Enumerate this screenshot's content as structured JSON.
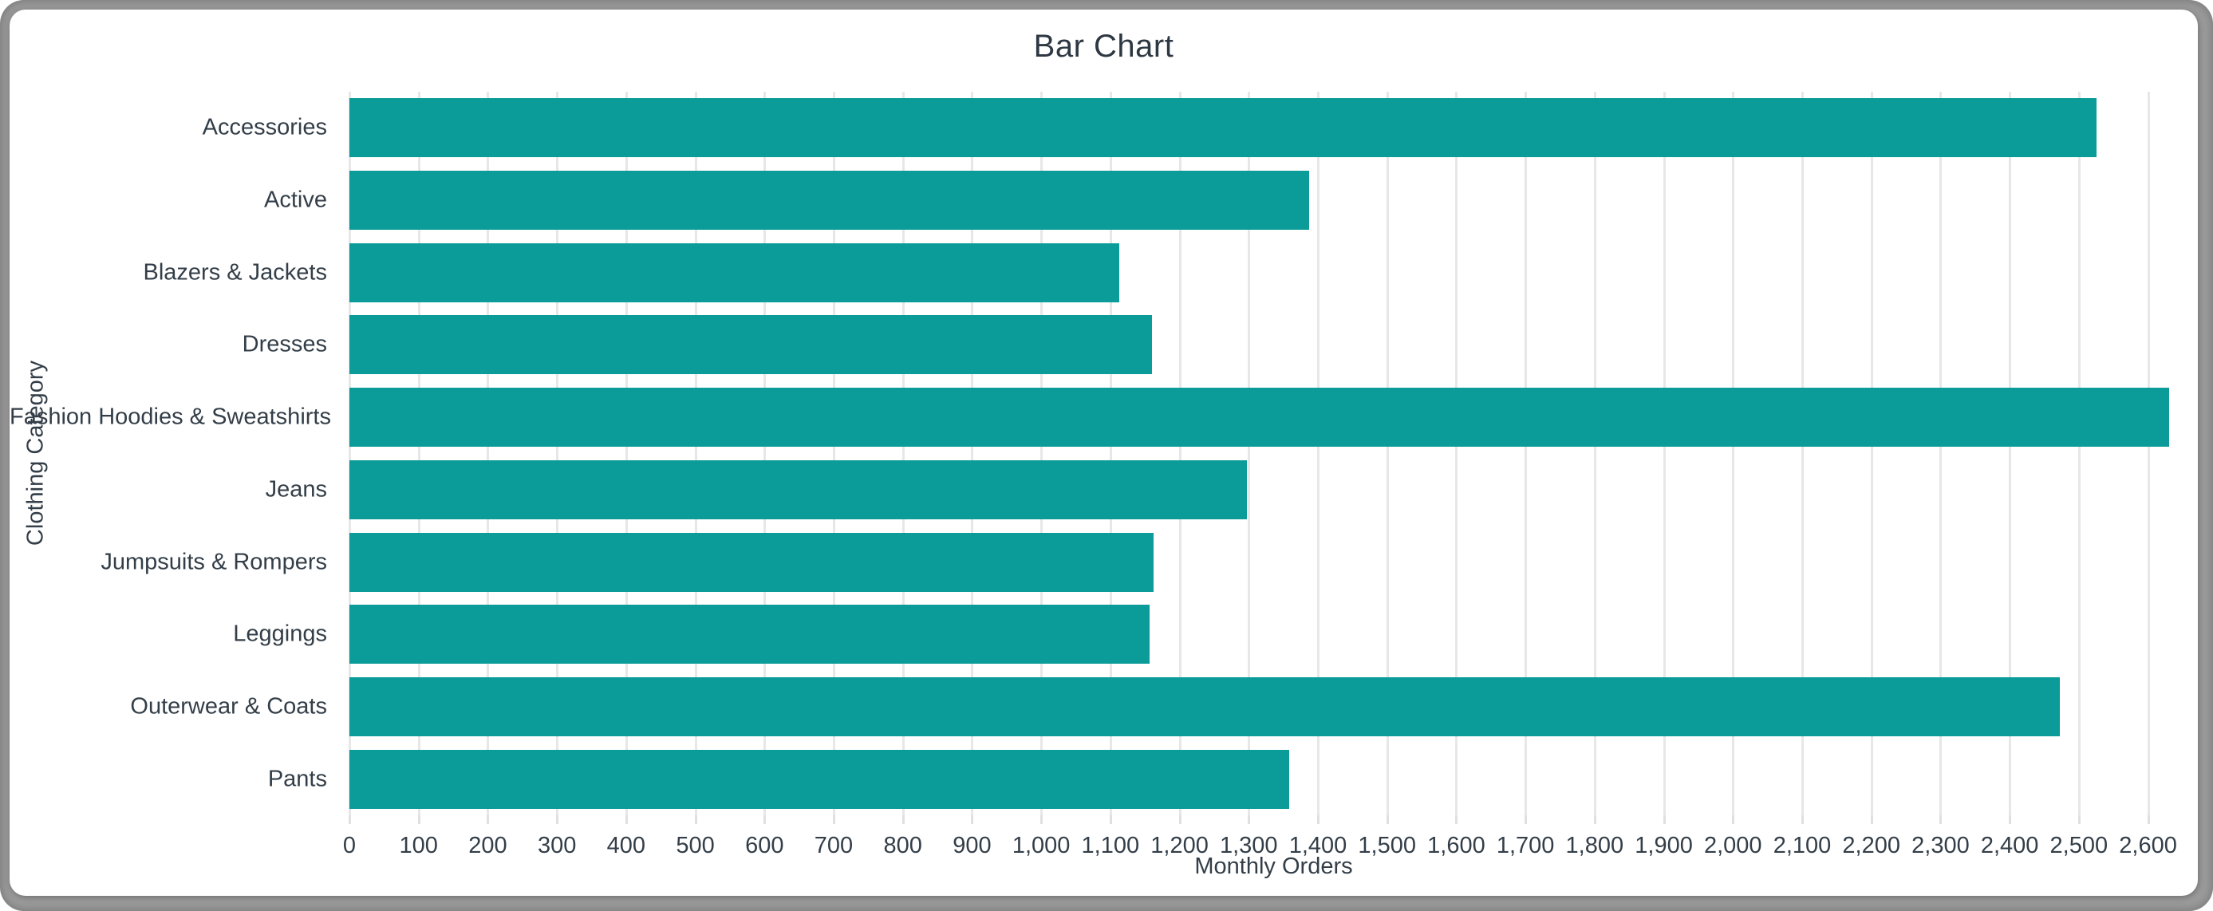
{
  "window": {
    "frame_color": "#9c9c9c",
    "card_color": "#ffffff"
  },
  "chart_data": {
    "type": "bar",
    "orientation": "horizontal",
    "title": "Bar Chart",
    "xlabel": "Monthly Orders",
    "ylabel": "Clothing Category",
    "categories": [
      "Accessories",
      "Active",
      "Blazers & Jackets",
      "Dresses",
      "Fashion Hoodies & Sweatshirts",
      "Jeans",
      "Jumpsuits & Rompers",
      "Leggings",
      "Outerwear & Coats",
      "Pants"
    ],
    "values": [
      2525,
      1387,
      1113,
      1160,
      2630,
      1297,
      1162,
      1157,
      2472,
      1358
    ],
    "xlim": [
      0,
      2672
    ],
    "x_tick_step": 100,
    "x_tick_last": 2600,
    "x_tick_labels": [
      "0",
      "100",
      "200",
      "300",
      "400",
      "500",
      "600",
      "700",
      "800",
      "900",
      "1,000",
      "1,100",
      "1,200",
      "1,300",
      "1,400",
      "1,500",
      "1,600",
      "1,700",
      "1,800",
      "1,900",
      "2,000",
      "2,100",
      "2,200",
      "2,300",
      "2,400",
      "2,500",
      "2,600"
    ],
    "grid": true,
    "legend": false,
    "bar_color": "#0b9b98",
    "grid_color": "#e7e7e7",
    "text_color": "#333e48"
  }
}
